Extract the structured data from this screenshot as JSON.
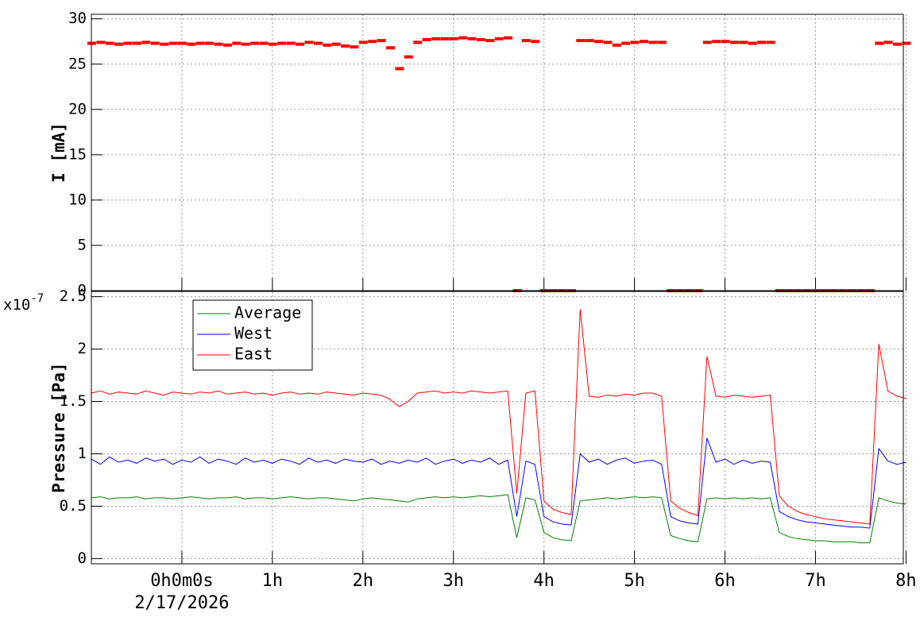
{
  "chart_data": [
    {
      "type": "scatter",
      "y_label": "I [mA]",
      "x": [
        -1.0,
        -0.9,
        -0.8,
        -0.7,
        -0.6,
        -0.5,
        -0.4,
        -0.3,
        -0.2,
        -0.1,
        0.0,
        0.1,
        0.2,
        0.3,
        0.4,
        0.5,
        0.6,
        0.7,
        0.8,
        0.9,
        1.0,
        1.1,
        1.2,
        1.3,
        1.4,
        1.5,
        1.6,
        1.7,
        1.8,
        1.9,
        2.0,
        2.1,
        2.2,
        2.3,
        2.4,
        2.5,
        2.6,
        2.7,
        2.8,
        2.9,
        3.0,
        3.1,
        3.2,
        3.3,
        3.4,
        3.5,
        3.6,
        3.7,
        3.8,
        3.9,
        4.0,
        4.1,
        4.2,
        4.3,
        4.4,
        4.5,
        4.6,
        4.7,
        4.8,
        4.9,
        5.0,
        5.1,
        5.2,
        5.3,
        5.4,
        5.5,
        5.6,
        5.7,
        5.8,
        5.9,
        6.0,
        6.1,
        6.2,
        6.3,
        6.4,
        6.5,
        6.6,
        6.7,
        6.8,
        6.9,
        7.0,
        7.1,
        7.2,
        7.3,
        7.4,
        7.5,
        7.6,
        7.7,
        7.8,
        7.9,
        8.0
      ],
      "series": [
        {
          "color": "#ff0000",
          "values": [
            27.3,
            27.4,
            27.3,
            27.2,
            27.3,
            27.3,
            27.4,
            27.3,
            27.2,
            27.3,
            27.3,
            27.2,
            27.3,
            27.3,
            27.2,
            27.1,
            27.3,
            27.2,
            27.3,
            27.3,
            27.2,
            27.3,
            27.3,
            27.2,
            27.4,
            27.3,
            27.1,
            27.2,
            27.0,
            26.9,
            27.4,
            27.5,
            27.6,
            26.8,
            24.5,
            25.8,
            27.4,
            27.7,
            27.8,
            27.8,
            27.8,
            27.9,
            27.8,
            27.7,
            27.6,
            27.8,
            27.9,
            0,
            27.6,
            27.5,
            0,
            0,
            0,
            0,
            27.6,
            27.6,
            27.5,
            27.4,
            27.1,
            27.3,
            27.4,
            27.5,
            27.4,
            27.4,
            0,
            0,
            0,
            0,
            27.4,
            27.5,
            27.5,
            27.4,
            27.4,
            27.3,
            27.4,
            27.4,
            0,
            0,
            0,
            0,
            0,
            0,
            0,
            0,
            0,
            0,
            0,
            27.3,
            27.4,
            27.2,
            27.3
          ]
        }
      ],
      "xlim": [
        -1,
        7.97
      ],
      "xticks": [
        0,
        1,
        2,
        3,
        4,
        5,
        6,
        7,
        8
      ],
      "ylim": [
        0,
        30.5
      ],
      "yticks": [
        0,
        5,
        10,
        15,
        20,
        25,
        30
      ],
      "grid": true
    },
    {
      "type": "line",
      "y_label": "Pressure [Pa]",
      "y_multiplier": "x10",
      "y_multiplier_exponent": "-7",
      "x_date_label": "2/17/2026",
      "legend": "top-left",
      "x": [
        -1.0,
        -0.9,
        -0.8,
        -0.7,
        -0.6,
        -0.5,
        -0.4,
        -0.3,
        -0.2,
        -0.1,
        0.0,
        0.1,
        0.2,
        0.3,
        0.4,
        0.5,
        0.6,
        0.7,
        0.8,
        0.9,
        1.0,
        1.1,
        1.2,
        1.3,
        1.4,
        1.5,
        1.6,
        1.7,
        1.8,
        1.9,
        2.0,
        2.1,
        2.2,
        2.3,
        2.4,
        2.5,
        2.6,
        2.7,
        2.8,
        2.9,
        3.0,
        3.1,
        3.2,
        3.3,
        3.4,
        3.5,
        3.6,
        3.7,
        3.8,
        3.9,
        4.0,
        4.1,
        4.2,
        4.3,
        4.4,
        4.5,
        4.6,
        4.7,
        4.8,
        4.9,
        5.0,
        5.1,
        5.2,
        5.3,
        5.4,
        5.5,
        5.6,
        5.7,
        5.8,
        5.9,
        6.0,
        6.1,
        6.2,
        6.3,
        6.4,
        6.5,
        6.6,
        6.7,
        6.8,
        6.9,
        7.0,
        7.1,
        7.2,
        7.3,
        7.4,
        7.5,
        7.6,
        7.7,
        7.8,
        7.9,
        8.0
      ],
      "series": [
        {
          "name": "Average",
          "color": "#008000",
          "values": [
            0.58,
            0.59,
            0.57,
            0.58,
            0.58,
            0.59,
            0.57,
            0.58,
            0.58,
            0.57,
            0.58,
            0.59,
            0.58,
            0.57,
            0.58,
            0.58,
            0.59,
            0.57,
            0.58,
            0.58,
            0.57,
            0.58,
            0.59,
            0.58,
            0.57,
            0.58,
            0.58,
            0.57,
            0.56,
            0.55,
            0.57,
            0.58,
            0.57,
            0.56,
            0.55,
            0.54,
            0.57,
            0.58,
            0.59,
            0.58,
            0.59,
            0.58,
            0.59,
            0.6,
            0.59,
            0.6,
            0.61,
            0.2,
            0.58,
            0.56,
            0.25,
            0.2,
            0.18,
            0.17,
            0.55,
            0.56,
            0.57,
            0.58,
            0.57,
            0.58,
            0.59,
            0.58,
            0.59,
            0.58,
            0.22,
            0.19,
            0.17,
            0.16,
            0.57,
            0.58,
            0.57,
            0.58,
            0.57,
            0.58,
            0.57,
            0.58,
            0.25,
            0.21,
            0.19,
            0.18,
            0.17,
            0.17,
            0.16,
            0.16,
            0.16,
            0.15,
            0.15,
            0.58,
            0.55,
            0.53,
            0.52
          ]
        },
        {
          "name": "West",
          "color": "#0000ff",
          "values": [
            0.95,
            0.9,
            0.97,
            0.92,
            0.94,
            0.91,
            0.96,
            0.93,
            0.95,
            0.9,
            0.94,
            0.92,
            0.97,
            0.91,
            0.95,
            0.93,
            0.9,
            0.96,
            0.92,
            0.94,
            0.91,
            0.95,
            0.93,
            0.9,
            0.96,
            0.92,
            0.94,
            0.91,
            0.95,
            0.93,
            0.92,
            0.95,
            0.9,
            0.93,
            0.91,
            0.94,
            0.92,
            0.96,
            0.9,
            0.93,
            0.95,
            0.91,
            0.94,
            0.92,
            0.96,
            0.9,
            0.94,
            0.4,
            0.93,
            0.9,
            0.4,
            0.35,
            0.33,
            0.32,
            1.0,
            0.92,
            0.95,
            0.9,
            0.94,
            0.96,
            0.91,
            0.93,
            0.94,
            0.9,
            0.4,
            0.36,
            0.34,
            0.33,
            1.15,
            0.92,
            0.95,
            0.9,
            0.94,
            0.91,
            0.93,
            0.92,
            0.45,
            0.4,
            0.37,
            0.35,
            0.34,
            0.33,
            0.32,
            0.31,
            0.3,
            0.3,
            0.29,
            1.05,
            0.93,
            0.9,
            0.92
          ]
        },
        {
          "name": "East",
          "color": "#ff0000",
          "values": [
            1.58,
            1.6,
            1.57,
            1.59,
            1.58,
            1.57,
            1.6,
            1.58,
            1.56,
            1.59,
            1.58,
            1.57,
            1.59,
            1.58,
            1.6,
            1.57,
            1.58,
            1.59,
            1.57,
            1.58,
            1.56,
            1.58,
            1.59,
            1.57,
            1.58,
            1.57,
            1.59,
            1.58,
            1.57,
            1.56,
            1.58,
            1.57,
            1.56,
            1.52,
            1.45,
            1.5,
            1.58,
            1.59,
            1.6,
            1.58,
            1.59,
            1.58,
            1.6,
            1.59,
            1.58,
            1.59,
            1.6,
            0.62,
            1.58,
            1.6,
            0.55,
            0.47,
            0.44,
            0.42,
            2.38,
            1.55,
            1.54,
            1.56,
            1.55,
            1.57,
            1.56,
            1.58,
            1.58,
            1.55,
            0.55,
            0.48,
            0.44,
            0.41,
            1.93,
            1.55,
            1.54,
            1.56,
            1.55,
            1.54,
            1.55,
            1.56,
            0.6,
            0.5,
            0.45,
            0.42,
            0.4,
            0.38,
            0.37,
            0.36,
            0.35,
            0.34,
            0.33,
            2.05,
            1.6,
            1.55,
            1.53
          ]
        }
      ],
      "xlim": [
        -1,
        7.97
      ],
      "xticks": [
        {
          "value": 0,
          "label": "0h0m0s"
        },
        {
          "value": 1,
          "label": "1h"
        },
        {
          "value": 2,
          "label": "2h"
        },
        {
          "value": 3,
          "label": "3h"
        },
        {
          "value": 4,
          "label": "4h"
        },
        {
          "value": 5,
          "label": "5h"
        },
        {
          "value": 6,
          "label": "6h"
        },
        {
          "value": 7,
          "label": "7h"
        },
        {
          "value": 8,
          "label": "8h"
        }
      ],
      "ylim": [
        -0.05,
        2.55
      ],
      "yticks": [
        0,
        0.5,
        1,
        1.5,
        2,
        2.5
      ],
      "grid": true
    }
  ]
}
